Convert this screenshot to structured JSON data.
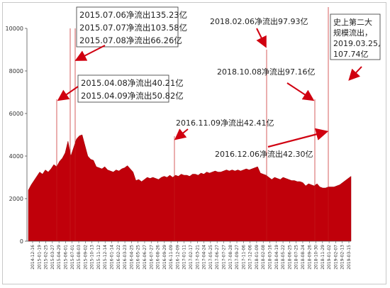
{
  "chart_data": {
    "type": "area",
    "title": "",
    "xlabel": "",
    "ylabel": "",
    "ylim": [
      0,
      10000
    ],
    "y_ticks": [
      0,
      2000,
      4000,
      6000,
      8000,
      10000
    ],
    "x_ticks": [
      "2014-12-16",
      "2015-01-19",
      "2015-02-25",
      "2015-03-27",
      "2015-04-29",
      "2015-06-01",
      "2015-07-01",
      "2015-08-03",
      "2015-09-02",
      "2015-10-13",
      "2015-11-12",
      "2015-12-14",
      "2016-01-14",
      "2016-02-22",
      "2016-03-23",
      "2016-04-25",
      "2016-05-25",
      "2016-06-27",
      "2016-07-27",
      "2016-08-26",
      "2016-09-29",
      "2016-11-09",
      "2016-12-09",
      "2017-01-11",
      "2017-02-17",
      "2017-03-21",
      "2017-04-24",
      "2017-05-25",
      "2017-06-27",
      "2017-07-27",
      "2017-08-28",
      "2017-09-27",
      "2017-11-06",
      "2017-12-06",
      "2018-01-09",
      "2018-02-08",
      "2018-03-16",
      "2018-04-19",
      "2018-05-22",
      "2018-06-25",
      "2018-07-25",
      "2018-08-24",
      "2018-09-26",
      "2018-10-30",
      "2018-11-29",
      "2019-01-02",
      "2019-02-07",
      "2019-02-13",
      "2019-03-15"
    ],
    "series": [
      {
        "values": [
          2400,
          2650,
          2850,
          3050,
          3250,
          3150,
          3350,
          3250,
          3400,
          3600,
          3500,
          3750,
          3900,
          4150,
          4700,
          4000,
          4400,
          4800,
          4950,
          5000,
          4500,
          4000,
          3850,
          3800,
          3500,
          3450,
          3400,
          3500,
          3350,
          3300,
          3250,
          3350,
          3300,
          3400,
          3450,
          3550,
          3400,
          3250,
          2850,
          2900,
          2800,
          2900,
          3000,
          2950,
          3000,
          2950,
          2900,
          3000,
          3050,
          3000,
          3100,
          3000,
          3100,
          3050,
          3150,
          3100,
          3100,
          3050,
          3150,
          3150,
          3100,
          3200,
          3150,
          3250,
          3200,
          3250,
          3300,
          3250,
          3250,
          3300,
          3350,
          3300,
          3350,
          3300,
          3350,
          3300,
          3350,
          3400,
          3350,
          3400,
          3450,
          3500,
          3200,
          3150,
          3100,
          3000,
          2900,
          3000,
          2950,
          2900,
          3000,
          2950,
          2900,
          2850,
          2850,
          2800,
          2800,
          2750,
          2600,
          2700,
          2650,
          2600,
          2700,
          2550,
          2500,
          2500,
          2550,
          2550,
          2550,
          2600,
          2650,
          2750,
          2850,
          2950,
          3050
        ]
      }
    ],
    "colors": {
      "fill": "#c0000a",
      "line": "#9a0008",
      "arrow": "#d00010",
      "marker": "#c41a1a"
    },
    "annotations": {
      "top_box": [
        "2015.07.06净流出135.23亿",
        "2015.07.07净流出103.58亿",
        "2015.07.08净流出66.26亿"
      ],
      "mid_box": [
        "2015.04.08净流出40.21亿",
        "2015.04.09净流出50.82亿"
      ],
      "label_2018_02": "2018.02.06净流出97.93亿",
      "label_2018_10": "2018.10.08净流出97.16亿",
      "label_2016_11": "2016.11.09净流出42.41亿",
      "label_2016_12": "2016.12.06净流出42.30亿",
      "right_box": [
        "史上第二大",
        "规模流出，",
        "2019.03.25,",
        "107.74亿"
      ]
    }
  }
}
